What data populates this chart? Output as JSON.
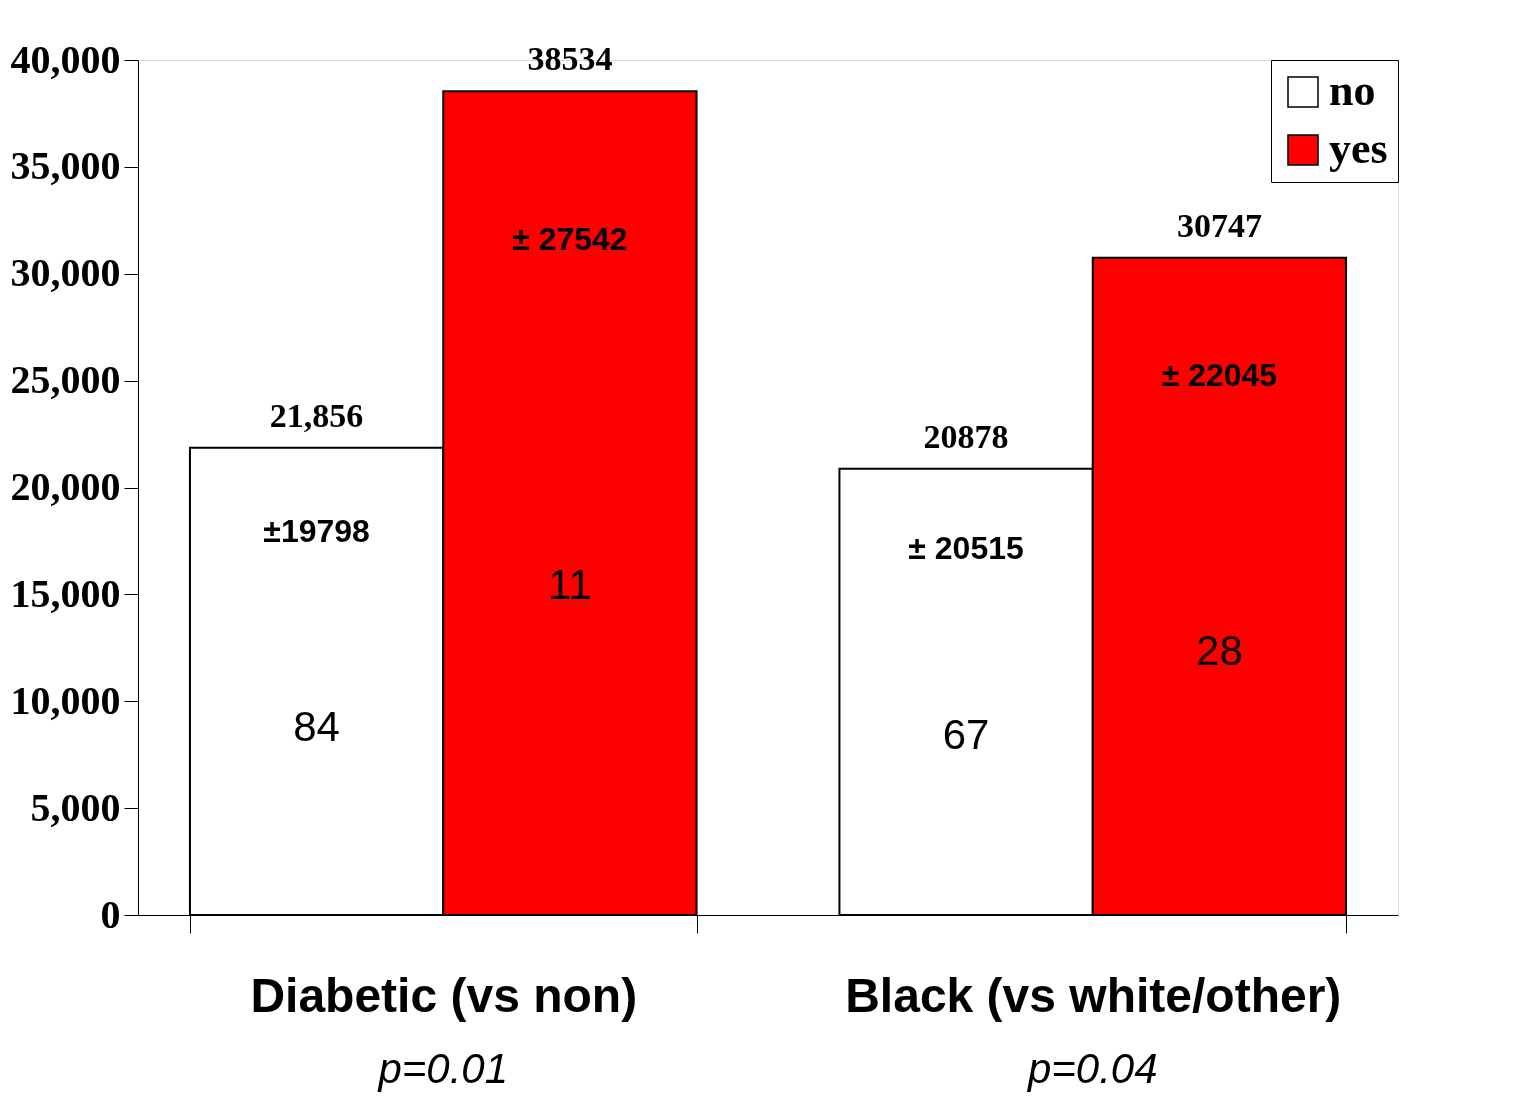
{
  "chart_data": {
    "type": "bar",
    "categories": [
      "Diabetic (vs non)",
      "Black (vs white/other)"
    ],
    "series": [
      {
        "name": "no",
        "color": "#ffffff",
        "values": [
          21856,
          20878
        ],
        "value_labels": [
          "21,856",
          "20878"
        ]
      },
      {
        "name": "yes",
        "color": "#ff0000",
        "values": [
          38534,
          30747
        ],
        "value_labels": [
          "38534",
          "30747"
        ]
      }
    ],
    "ylim": [
      0,
      40000
    ],
    "yticks": [
      0,
      {
        "value": 5000,
        "label": "5,000"
      },
      {
        "value": 10000,
        "label": "10,000"
      },
      {
        "value": 15000,
        "label": "15,000"
      },
      {
        "value": 20000,
        "label": "20,000"
      },
      {
        "value": 25000,
        "label": "25,000"
      },
      {
        "value": 30000,
        "label": "30,000"
      },
      {
        "value": 35000,
        "label": "35,000"
      },
      {
        "value": 40000,
        "label": "40,000"
      }
    ],
    "grid": false,
    "legend": "top right",
    "annotations": [
      "±19798",
      "± 27542",
      "± 20515",
      "± 22045",
      "84",
      "11",
      "67",
      "28",
      "p=0.01",
      "p=0.04"
    ]
  }
}
